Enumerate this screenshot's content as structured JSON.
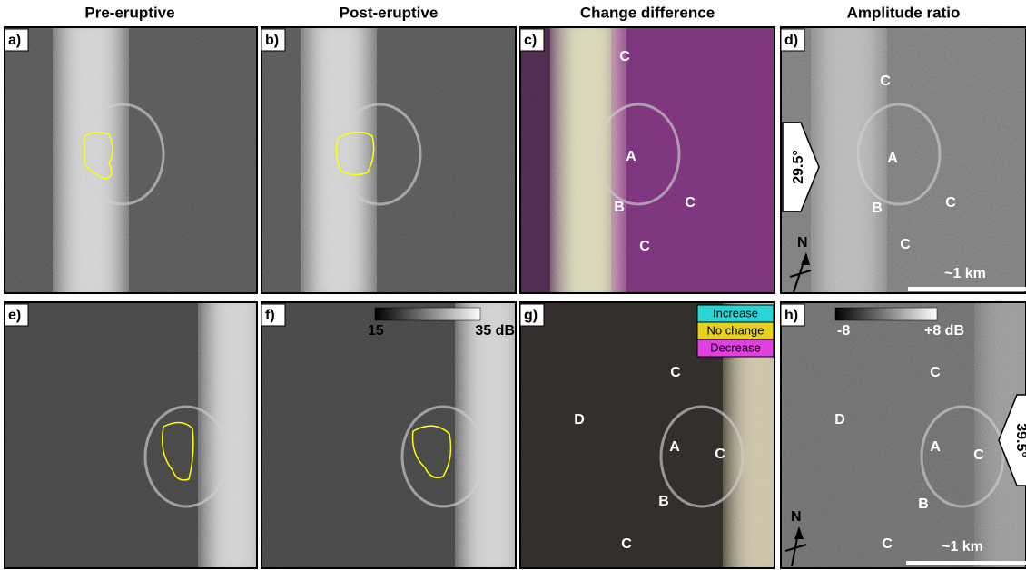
{
  "headers": [
    "Pre-eruptive",
    "Post-eruptive",
    "Change difference",
    "Amplitude ratio"
  ],
  "panels": [
    {
      "label": "a)"
    },
    {
      "label": "b)"
    },
    {
      "label": "c)",
      "annotations": [
        "C",
        "A",
        "B",
        "C",
        "C"
      ]
    },
    {
      "label": "d)",
      "annotations": [
        "C",
        "A",
        "B",
        "C",
        "C"
      ],
      "look_angle": "29.5°",
      "north": "N",
      "scale_bar": "~1 km"
    },
    {
      "label": "e)"
    },
    {
      "label": "f)",
      "colorbar": {
        "min": "15",
        "max": "35 dB"
      }
    },
    {
      "label": "g)",
      "annotations": [
        "C",
        "D",
        "A",
        "C",
        "B",
        "C"
      ],
      "legend": [
        "Increase",
        "No change",
        "Decrease"
      ]
    },
    {
      "label": "h)",
      "colorbar": {
        "min": "-8",
        "max": "+8 dB"
      },
      "annotations": [
        "C",
        "D",
        "A",
        "C",
        "B",
        "C"
      ],
      "look_angle": "39.5°",
      "north": "N",
      "scale_bar": "~1 km"
    }
  ]
}
